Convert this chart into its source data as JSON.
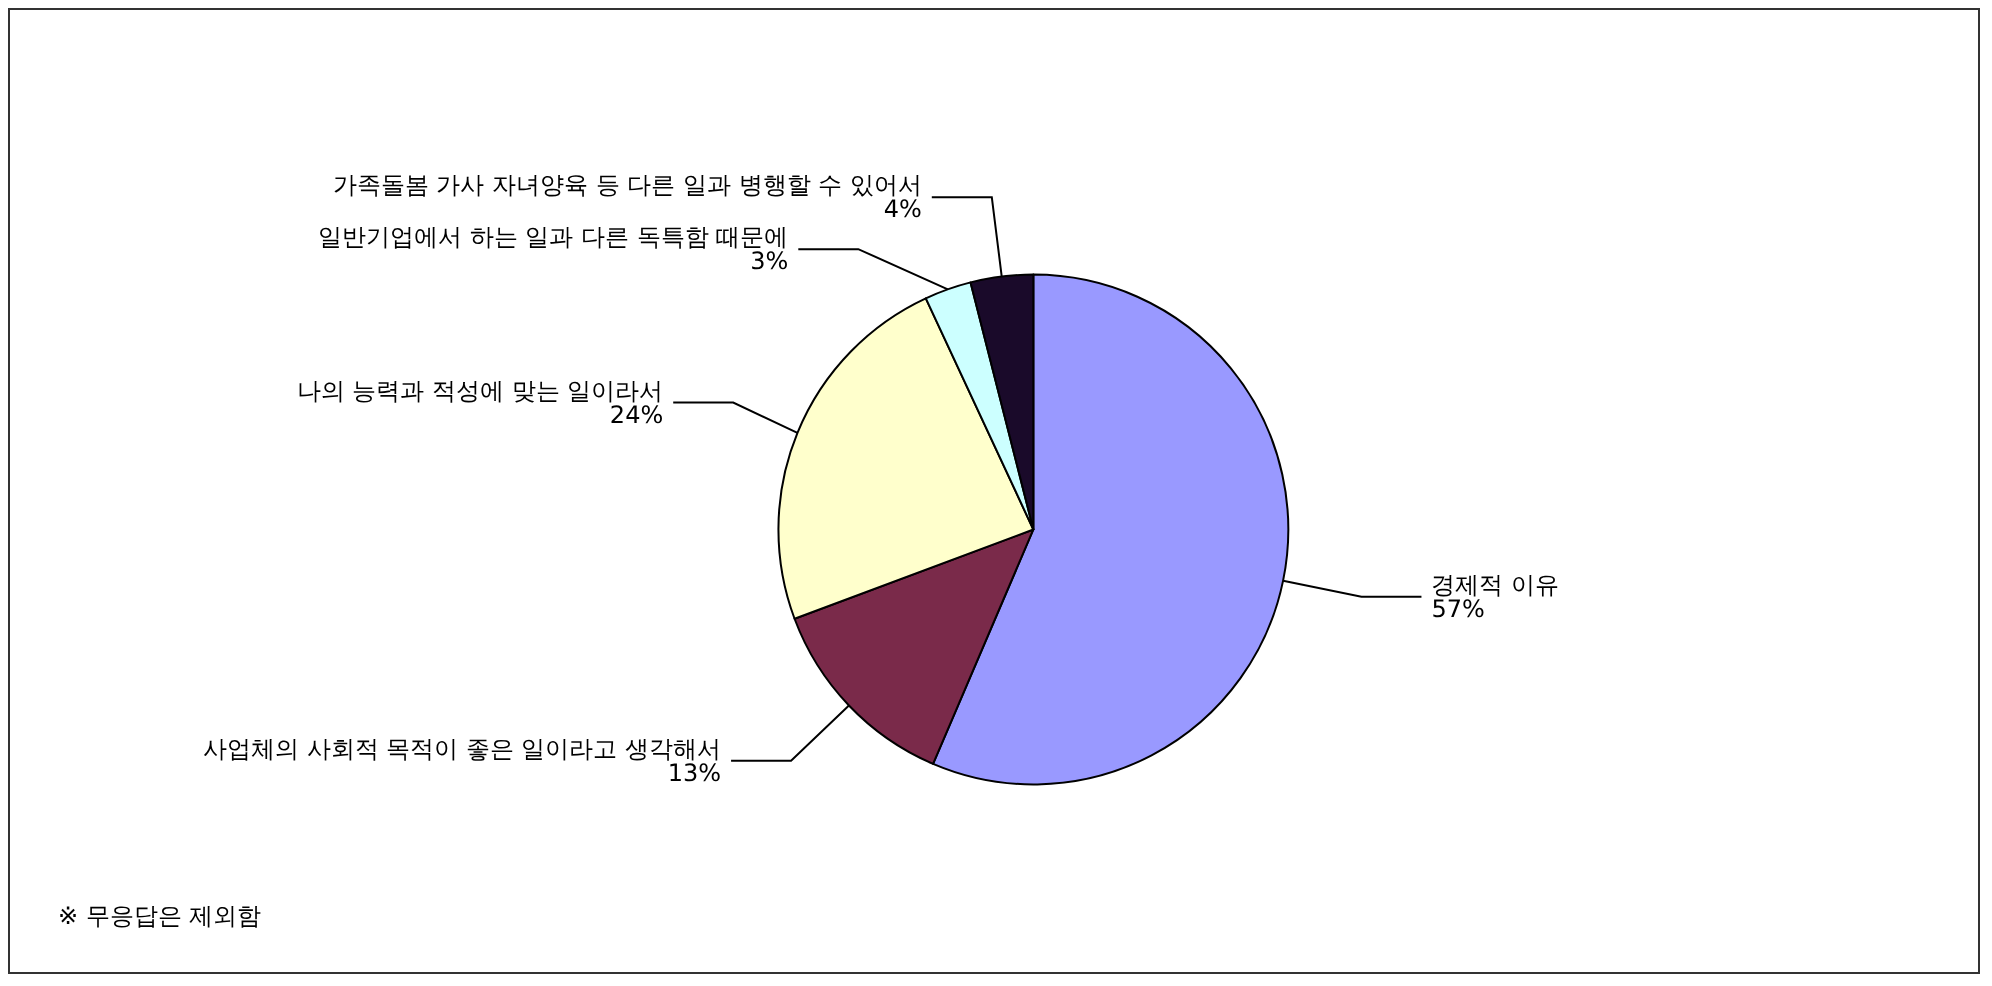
{
  "chart_data": {
    "type": "pie",
    "categories": [
      "경제적 이유",
      "사업체의 사회적 목적이 좋은 일이라고 생각해서",
      "나의 능력과 적성에 맞는 일이라서",
      "일반기업에서 하는 일과 다른 독특함 때문에",
      "가족돌봄 가사 자녀양육 등 다른 일과 병행할 수 있어서"
    ],
    "values": [
      57,
      13,
      24,
      3,
      4
    ],
    "value_labels": [
      "57%",
      "13%",
      "24%",
      "3%",
      "4%"
    ],
    "colors": [
      "#9999ff",
      "#7a2a4a",
      "#ffffcc",
      "#ccffff",
      "#1a0a2a"
    ],
    "legend": false,
    "annotations": [
      "※ 무응답은 제외함"
    ]
  }
}
